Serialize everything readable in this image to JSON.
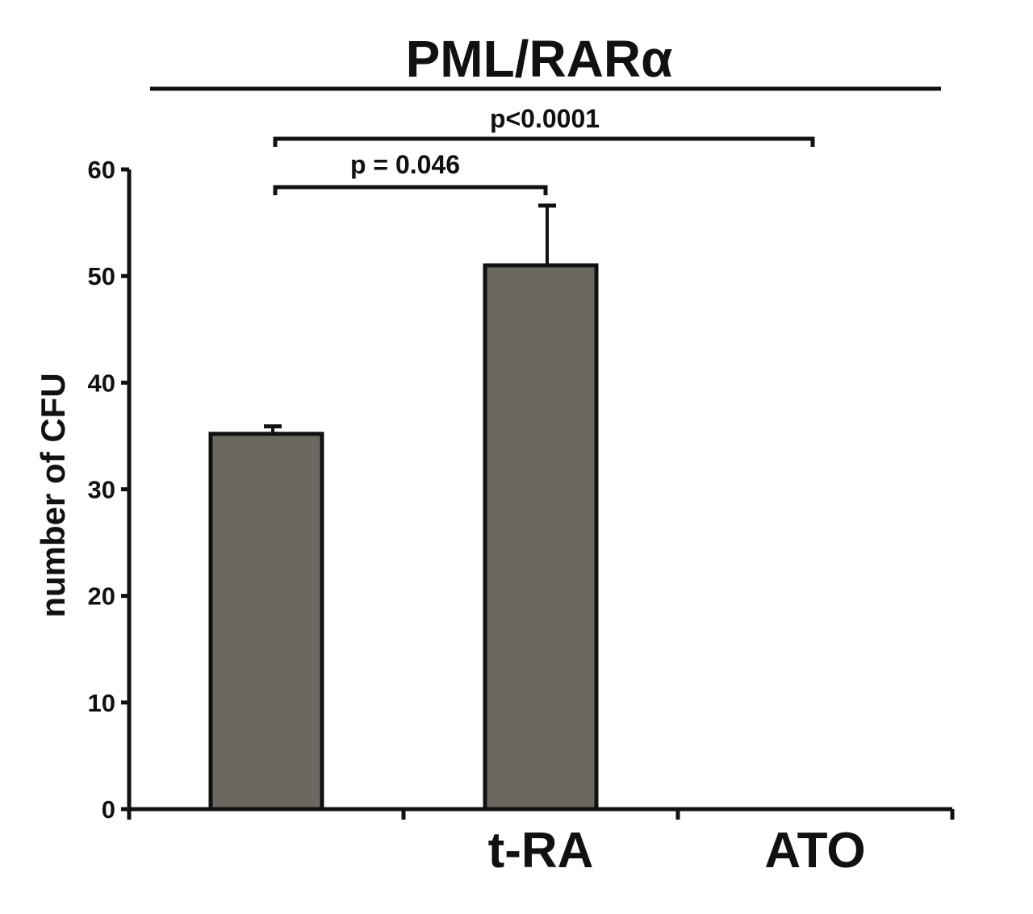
{
  "chart_data": {
    "type": "bar",
    "title": "PML/RARα",
    "ylabel": "number of CFU",
    "xlabel": "",
    "categories": [
      "",
      "t-RA",
      "ATO"
    ],
    "values": [
      35.2,
      51.0,
      0
    ],
    "errors": [
      0.7,
      5.6,
      0
    ],
    "ylim": [
      0,
      60
    ],
    "yticks": [
      0,
      10,
      20,
      30,
      40,
      50,
      60
    ],
    "grid": false,
    "legend": "none",
    "bar_color": "#6b6862",
    "significance": [
      {
        "from": 0,
        "to": 1,
        "label": "p = 0.046"
      },
      {
        "from": 0,
        "to": 2,
        "label": "p<0.0001"
      }
    ]
  }
}
